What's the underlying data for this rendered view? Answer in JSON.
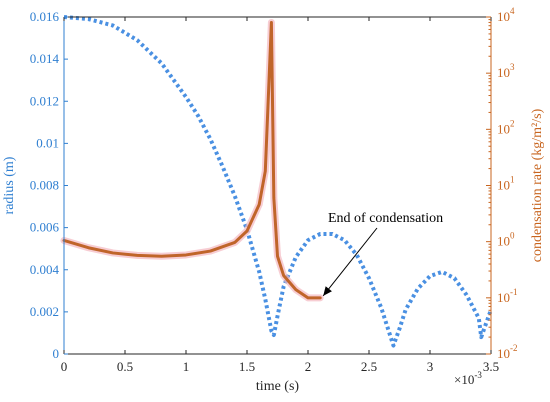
{
  "chart_data": {
    "type": "line",
    "xlabel": "time (s)",
    "x_exponent_label": "×10",
    "x_exponent_power": "-3",
    "ylabel_left": "radius (m)",
    "ylabel_right": "condensation rate (kg/m²/s)",
    "xlim": [
      0,
      0.0035
    ],
    "ylim_left": [
      0,
      0.016
    ],
    "ylim_right_log10": [
      -2,
      4
    ],
    "x_ticks": [
      0,
      0.0005,
      0.001,
      0.0015,
      0.002,
      0.0025,
      0.003,
      0.0035
    ],
    "x_tick_labels": [
      "0",
      "0.5",
      "1",
      "1.5",
      "2",
      "2.5",
      "3",
      "3.5"
    ],
    "y_left_ticks": [
      0,
      0.002,
      0.004,
      0.006,
      0.008,
      0.01,
      0.012,
      0.014,
      0.016
    ],
    "y_left_tick_labels": [
      "0",
      "0.002",
      "0.004",
      "0.006",
      "0.008",
      "0.01",
      "0.012",
      "0.014",
      "0.016"
    ],
    "y_right_ticks_log10": [
      -2,
      -1,
      0,
      1,
      2,
      3,
      4
    ],
    "y_right_tick_mantissa": "10",
    "y_right_tick_exponents": [
      "-2",
      "-1",
      "0",
      "1",
      "2",
      "3",
      "4"
    ],
    "colors": {
      "radius": "#4a90e2",
      "rate": "#c0652a",
      "rate_halo": "#f4b8c0",
      "left_axis": "#2f7fd1",
      "right_axis": "#c8651f",
      "axes": "#262626"
    },
    "series": [
      {
        "key": "radius",
        "axis": "left",
        "style": "dotted",
        "x": [
          0,
          0.0002,
          0.0004,
          0.0006,
          0.0008,
          0.001,
          0.0011,
          0.0012,
          0.0013,
          0.0014,
          0.0015,
          0.0016,
          0.00165,
          0.0017,
          0.00172,
          0.00175,
          0.0018,
          0.0019,
          0.002,
          0.0021,
          0.0022,
          0.0023,
          0.0024,
          0.0025,
          0.0026,
          0.00265,
          0.0027,
          0.00275,
          0.0028,
          0.0029,
          0.003,
          0.0031,
          0.0032,
          0.0033,
          0.0034,
          0.00342,
          0.00345,
          0.0035
        ],
        "y": [
          0.016,
          0.0159,
          0.0156,
          0.0149,
          0.0138,
          0.0122,
          0.0113,
          0.0102,
          0.0089,
          0.0075,
          0.0059,
          0.0039,
          0.0026,
          0.0011,
          0.0009,
          0.0018,
          0.0032,
          0.0046,
          0.0054,
          0.0057,
          0.0057,
          0.0054,
          0.0047,
          0.0036,
          0.0022,
          0.0013,
          0.0004,
          0.0012,
          0.0021,
          0.0031,
          0.0037,
          0.0039,
          0.0036,
          0.0028,
          0.0017,
          0.0008,
          0.0013,
          0.0021
        ]
      },
      {
        "key": "rate",
        "axis": "right",
        "scale": "log",
        "style": "solid",
        "x": [
          0,
          0.0002,
          0.0004,
          0.0006,
          0.0008,
          0.001,
          0.0012,
          0.0014,
          0.0015,
          0.0016,
          0.00165,
          0.0017,
          0.00172,
          0.00175,
          0.0018,
          0.0019,
          0.002,
          0.0021
        ],
        "y": [
          1.05,
          0.78,
          0.63,
          0.57,
          0.55,
          0.58,
          0.68,
          0.97,
          1.55,
          4.6,
          18,
          8000,
          6,
          0.55,
          0.25,
          0.14,
          0.1,
          0.1
        ]
      }
    ],
    "annotations": [
      {
        "text": "End of condensation",
        "x": 0.0021,
        "y_log10": -1
      }
    ]
  }
}
